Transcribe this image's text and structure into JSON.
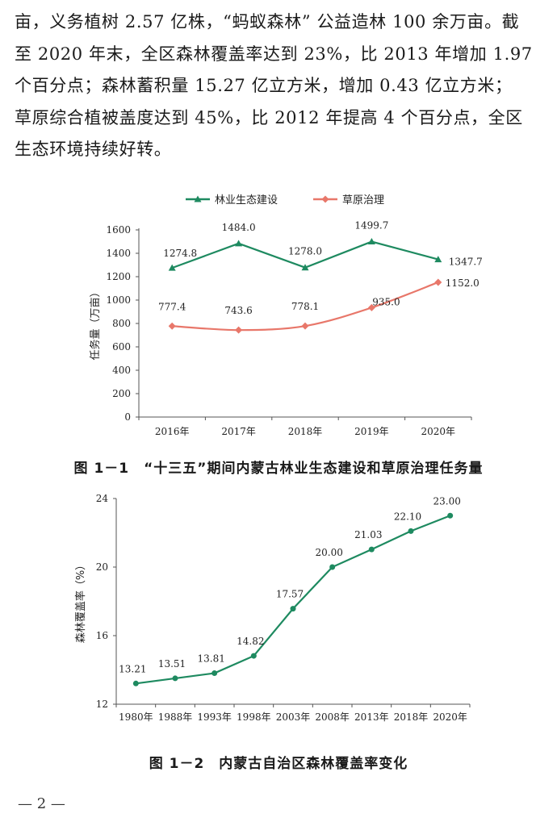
{
  "paragraph": {
    "lines": [
      "亩，义务植树 2.57 亿株，“蚂蚁森林” 公益造林 100 余万亩。截",
      "至 2020 年末，全区森林覆盖率达到 23%，比 2013 年增加 1.97",
      "个百分点；森林蓄积量 15.27 亿立方米，增加 0.43 亿立方米；",
      "草原综合植被盖度达到 45%，比 2012 年提高 4 个百分点，全区",
      "生态环境持续好转。"
    ]
  },
  "colors": {
    "forestry": "#1e8a60",
    "grassland": "#e8776a",
    "axis": "#555555"
  },
  "chart_data": [
    {
      "type": "line",
      "title": "",
      "categories": [
        "2016年",
        "2017年",
        "2018年",
        "2019年",
        "2020年"
      ],
      "series": [
        {
          "name": "林业生态建设",
          "values": [
            1274.8,
            1484.0,
            1278.0,
            1499.7,
            1347.7
          ],
          "labels": [
            "1274.8",
            "1484.0",
            "1278.0",
            "1499.7",
            "1347.7"
          ],
          "marker": "triangle"
        },
        {
          "name": "草原治理",
          "values": [
            777.4,
            743.6,
            778.1,
            935.0,
            1152.0
          ],
          "labels": [
            "777.4",
            "743.6",
            "778.1",
            "935.0",
            "1152.0"
          ],
          "marker": "diamond"
        }
      ],
      "xlabel": "",
      "ylabel": "任务量（万亩）",
      "ylim": [
        0,
        1600
      ],
      "yticks": [
        "0",
        "200",
        "400",
        "600",
        "800",
        "1000",
        "1200",
        "1400",
        "1600"
      ],
      "legend": "top",
      "grid": false
    },
    {
      "type": "line",
      "title": "",
      "categories": [
        "1980年",
        "1988年",
        "1993年",
        "1998年",
        "2003年",
        "2008年",
        "2013年",
        "2018年",
        "2020年"
      ],
      "series": [
        {
          "values": [
            13.21,
            13.51,
            13.81,
            14.82,
            17.57,
            20.0,
            21.03,
            22.1,
            23.0
          ],
          "labels": [
            "13.21",
            "13.51",
            "13.81",
            "14.82",
            "17.57",
            "20.00",
            "21.03",
            "22.10",
            "23.00"
          ]
        }
      ],
      "xlabel": "",
      "ylabel": "森林覆盖率（%）",
      "ylim": [
        12,
        24
      ],
      "yticks": [
        "12",
        "16",
        "20",
        "24"
      ],
      "grid": false
    }
  ],
  "captions": {
    "fig1": "图 1－1　“十三五”期间内蒙古林业生态建设和草原治理任务量",
    "fig2": "图 1－2　内蒙古自治区森林覆盖率变化"
  },
  "page_number": "— 2 —"
}
